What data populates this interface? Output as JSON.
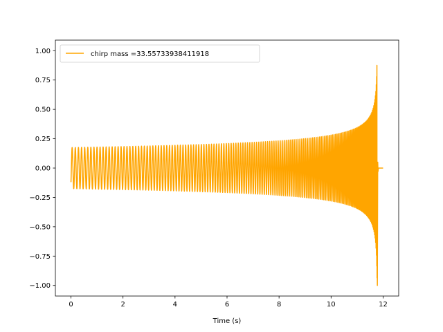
{
  "chart_data": {
    "type": "line",
    "title": "",
    "xlabel": "Time (s)",
    "ylabel": "",
    "xlim": [
      -0.6,
      12.6
    ],
    "ylim": [
      -1.09,
      1.09
    ],
    "x_ticks": [
      0,
      2,
      4,
      6,
      8,
      10,
      12
    ],
    "x_tick_labels": [
      "0",
      "2",
      "4",
      "6",
      "8",
      "10",
      "12"
    ],
    "y_ticks": [
      -1.0,
      -0.75,
      -0.5,
      -0.25,
      0.0,
      0.25,
      0.5,
      0.75,
      1.0
    ],
    "y_tick_labels": [
      "−1.00",
      "−0.75",
      "−0.50",
      "−0.25",
      "0.00",
      "0.25",
      "0.50",
      "0.75",
      "1.00"
    ],
    "grid": false,
    "legend_position": "top-left",
    "series": [
      {
        "name": "chirp mass =33.55733938411918",
        "color": "#ffa500",
        "t_start": 0.0,
        "t_merger": 11.78,
        "t_end": 12.0,
        "amplitude_start": 0.175,
        "amplitude_peak": 1.0,
        "initial_frequency_hz": 13,
        "cycles_visible": 155,
        "start_value": -0.12,
        "tail_value": 0.0
      }
    ]
  }
}
